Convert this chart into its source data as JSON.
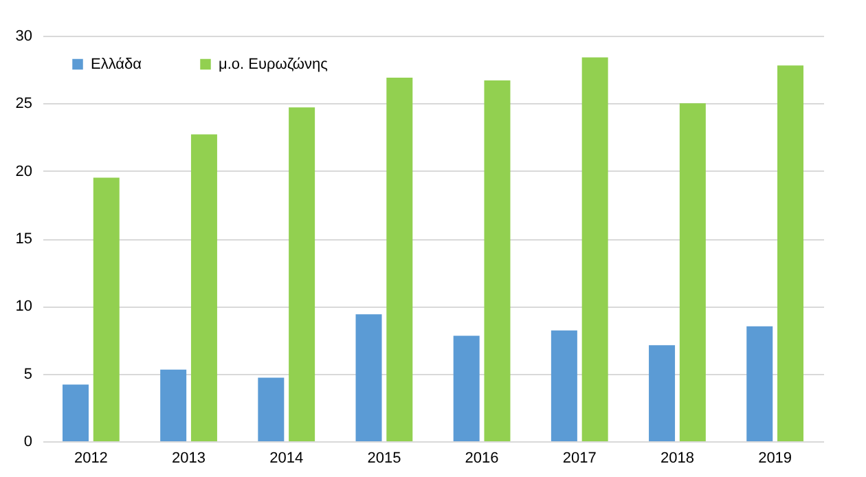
{
  "chart_data": {
    "type": "bar",
    "categories": [
      "2012",
      "2013",
      "2014",
      "2015",
      "2016",
      "2017",
      "2018",
      "2019"
    ],
    "series": [
      {
        "name": "Ελλάδα",
        "color": "#5b9bd5",
        "values": [
          4.2,
          5.3,
          4.7,
          9.4,
          7.8,
          8.2,
          7.1,
          8.5
        ]
      },
      {
        "name": "μ.ο. Ευρωζώνης",
        "color": "#92d050",
        "values": [
          19.5,
          22.7,
          24.7,
          26.9,
          26.7,
          28.4,
          25.0,
          27.8
        ]
      }
    ],
    "ylim": [
      0,
      30
    ],
    "yticks": [
      0,
      5,
      10,
      15,
      20,
      25,
      30
    ],
    "grid": "y",
    "legend": "top left"
  }
}
